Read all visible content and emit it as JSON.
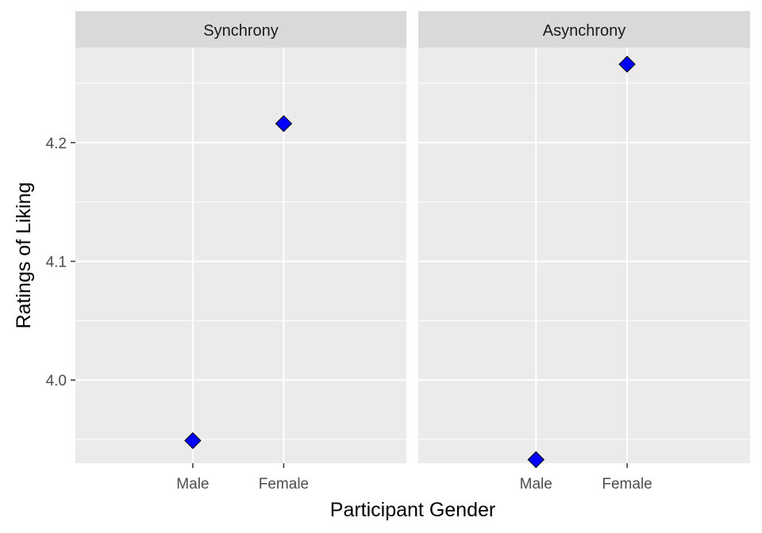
{
  "chart_data": {
    "type": "scatter",
    "x_title": "Participant Gender",
    "y_title": "Ratings of Liking",
    "categories": [
      "Male",
      "Female"
    ],
    "y_ticks": [
      "4.0",
      "4.1",
      "4.2"
    ],
    "y_tick_values": [
      4.0,
      4.1,
      4.2
    ],
    "ylim": [
      3.93,
      4.28
    ],
    "grid": true,
    "marker": {
      "shape": "diamond",
      "fill": "#0000ff",
      "stroke": "#000000"
    },
    "panels": [
      {
        "title": "Synchrony",
        "values": [
          3.949,
          4.216
        ]
      },
      {
        "title": "Asynchrony",
        "values": [
          3.933,
          4.266
        ]
      }
    ]
  }
}
